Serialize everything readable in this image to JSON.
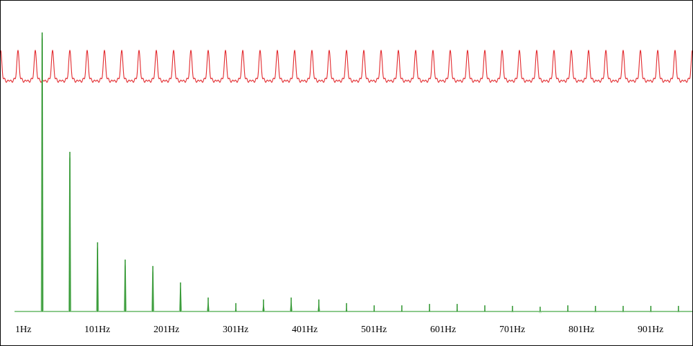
{
  "colors": {
    "waveform": "#e2262a",
    "spectrum": "#1a8a1a",
    "spectrum_light": "#8cc98c",
    "background": "#ffffff",
    "border": "#000000"
  },
  "chart_data": [
    {
      "type": "line",
      "role": "time-domain waveform",
      "cycles_visible": 40,
      "y_range": [
        -1,
        1
      ],
      "harmonic_mix": [
        {
          "harmonic": 1,
          "amplitude": 0.35
        },
        {
          "harmonic": 2,
          "amplitude": 0.25
        },
        {
          "harmonic": 3,
          "amplitude": 0.15
        },
        {
          "harmonic": 4,
          "amplitude": 0.12
        },
        {
          "harmonic": 5,
          "amplitude": 0.08
        }
      ]
    },
    {
      "type": "bar",
      "role": "frequency spectrum",
      "xlim": [
        1,
        961
      ],
      "ylim": [
        0,
        1
      ],
      "tick_values": [
        1,
        101,
        201,
        301,
        401,
        501,
        601,
        701,
        801,
        901
      ],
      "tick_labels": [
        "1Hz",
        "101Hz",
        "201Hz",
        "301Hz",
        "401Hz",
        "501Hz",
        "601Hz",
        "701Hz",
        "801Hz",
        "901Hz"
      ],
      "peaks": [
        {
          "freq": 41,
          "value": 1.0
        },
        {
          "freq": 81,
          "value": 0.572
        },
        {
          "freq": 121,
          "value": 0.248
        },
        {
          "freq": 161,
          "value": 0.186
        },
        {
          "freq": 201,
          "value": 0.163
        },
        {
          "freq": 241,
          "value": 0.104
        },
        {
          "freq": 281,
          "value": 0.05
        },
        {
          "freq": 321,
          "value": 0.03
        },
        {
          "freq": 361,
          "value": 0.043
        },
        {
          "freq": 401,
          "value": 0.05
        },
        {
          "freq": 441,
          "value": 0.043
        },
        {
          "freq": 481,
          "value": 0.03
        },
        {
          "freq": 521,
          "value": 0.022
        },
        {
          "freq": 561,
          "value": 0.022
        },
        {
          "freq": 601,
          "value": 0.027
        },
        {
          "freq": 641,
          "value": 0.027
        },
        {
          "freq": 681,
          "value": 0.022
        },
        {
          "freq": 721,
          "value": 0.02
        },
        {
          "freq": 761,
          "value": 0.017
        },
        {
          "freq": 801,
          "value": 0.022
        },
        {
          "freq": 841,
          "value": 0.02
        },
        {
          "freq": 881,
          "value": 0.02
        },
        {
          "freq": 921,
          "value": 0.02
        },
        {
          "freq": 961,
          "value": 0.02
        }
      ]
    }
  ]
}
